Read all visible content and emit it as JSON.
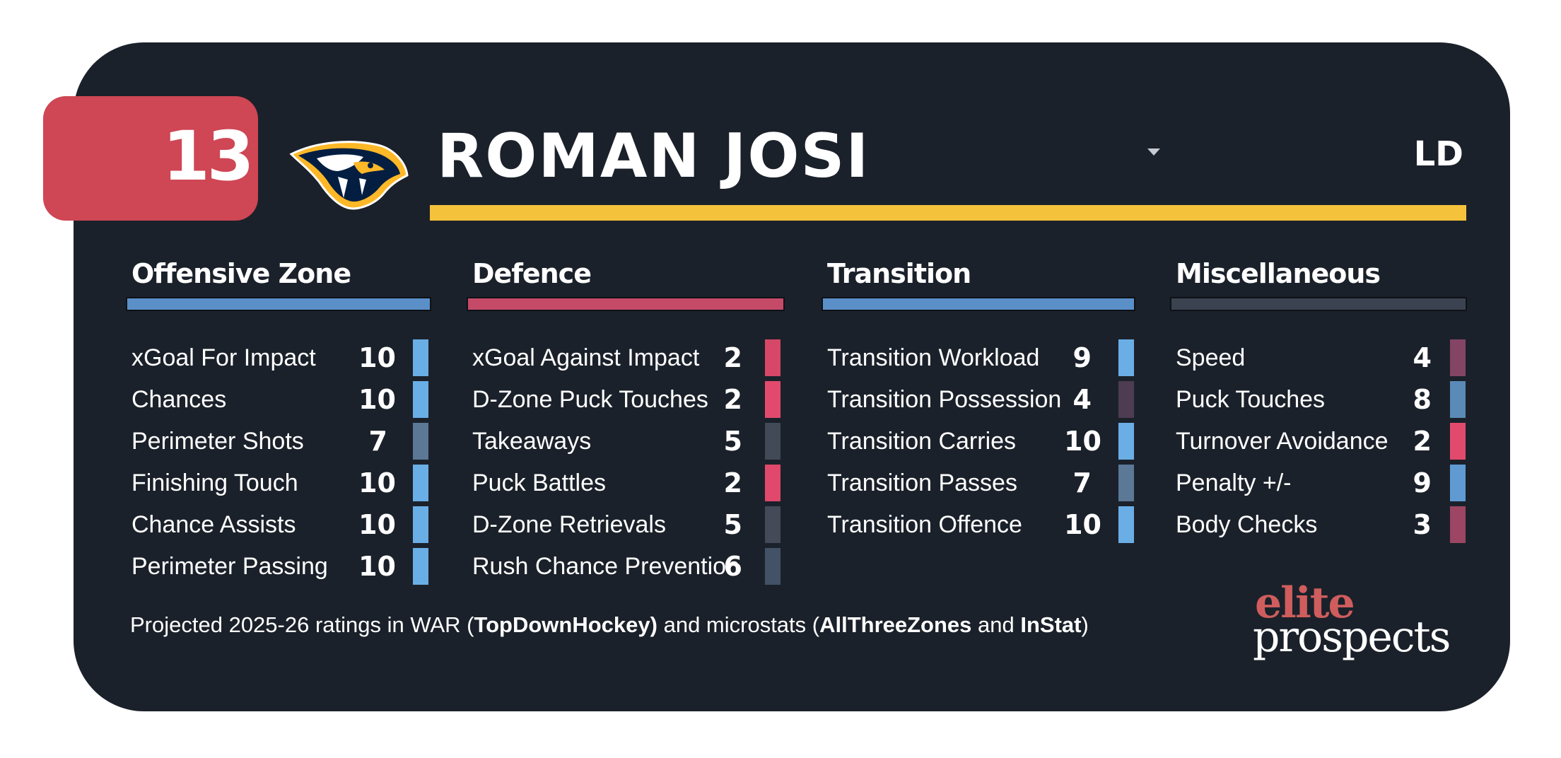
{
  "player": {
    "number": "13",
    "name": "ROMAN JOSI",
    "position": "LD",
    "team_logo": "predators-logo-icon"
  },
  "colors": {
    "card_background": "#1b212a",
    "badge": "#cf4654",
    "accent_yellow": "#f5c33b",
    "blue_high": "#6aaee6",
    "blue_mid": "#5b84a8",
    "slate_mid": "#465668",
    "slate_low": "#424957",
    "mauve_low": "#4d3c52",
    "pink_low": "#e24a6d"
  },
  "sections": [
    {
      "title": "Offensive Zone",
      "bar_color": "#5b8fc8",
      "stats": [
        {
          "label": "xGoal For Impact",
          "value": "10",
          "color": "#6aaee6"
        },
        {
          "label": "Chances",
          "value": "10",
          "color": "#6aaee6"
        },
        {
          "label": "Perimeter Shots",
          "value": "7",
          "color": "#5b7896"
        },
        {
          "label": "Finishing Touch",
          "value": "10",
          "color": "#6aaee6"
        },
        {
          "label": "Chance Assists",
          "value": "10",
          "color": "#6aaee6"
        },
        {
          "label": "Perimeter Passing",
          "value": "10",
          "color": "#6aaee6"
        }
      ]
    },
    {
      "title": "Defence",
      "bar_color": "#c54a68",
      "stats": [
        {
          "label": "xGoal Against Impact",
          "value": "2",
          "color": "#d64768"
        },
        {
          "label": "D-Zone Puck Touches",
          "value": "2",
          "color": "#e24a6d"
        },
        {
          "label": "Takeaways",
          "value": "5",
          "color": "#424957"
        },
        {
          "label": "Puck Battles",
          "value": "2",
          "color": "#e0486c"
        },
        {
          "label": "D-Zone Retrievals",
          "value": "5",
          "color": "#444a58"
        },
        {
          "label": "Rush Chance Prevention",
          "value": "6",
          "color": "#435266"
        }
      ]
    },
    {
      "title": "Transition",
      "bar_color": "#5b8fc8",
      "stats": [
        {
          "label": "Transition Workload",
          "value": "9",
          "color": "#6aaee6"
        },
        {
          "label": "Transition Possession",
          "value": "4",
          "color": "#4d3c52"
        },
        {
          "label": "Transition Carries",
          "value": "10",
          "color": "#6aaee6"
        },
        {
          "label": "Transition Passes",
          "value": "7",
          "color": "#5b7896"
        },
        {
          "label": "Transition Offence",
          "value": "10",
          "color": "#6aaee6"
        }
      ]
    },
    {
      "title": "Miscellaneous",
      "bar_color": "#3c4350",
      "stats": [
        {
          "label": "Speed",
          "value": "4",
          "color": "#834563"
        },
        {
          "label": "Puck Touches",
          "value": "8",
          "color": "#5a8ab8"
        },
        {
          "label": "Turnover Avoidance",
          "value": "2",
          "color": "#e24a6d"
        },
        {
          "label": "Penalty +/-",
          "value": "9",
          "color": "#5f9bd2"
        },
        {
          "label": "Body Checks",
          "value": "3",
          "color": "#9c4663"
        }
      ]
    }
  ],
  "footer": {
    "text_1": "Projected 2025-26 ratings in WAR (",
    "source_1": "TopDownHockey)",
    "text_2": " and microstats (",
    "source_2": "AllThreeZones",
    "text_3": " and ",
    "source_3": "InStat",
    "text_4": ")"
  },
  "brand": {
    "line1": "elite",
    "line2": "prospects"
  }
}
